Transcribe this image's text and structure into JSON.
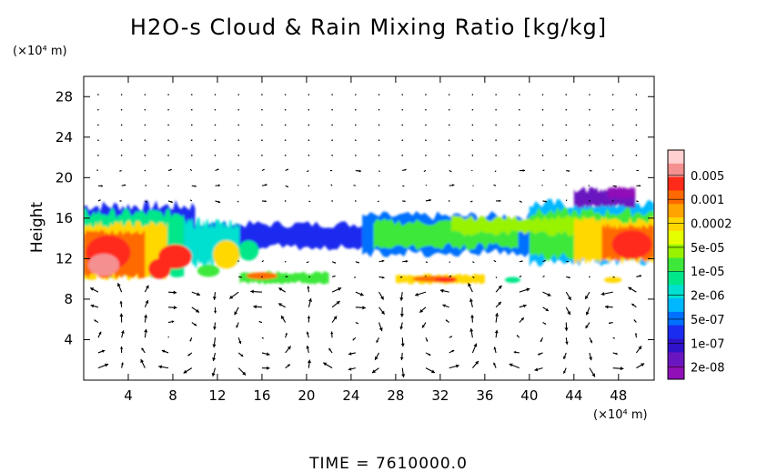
{
  "chart_data": {
    "type": "heatmap",
    "title": "H2O-s Cloud & Rain Mixing Ratio [kg/kg]",
    "ylabel": "Height",
    "y_unit": "(×10⁴ m)",
    "x_unit": "(×10⁴ m)",
    "footer": "TIME  =  7610000.0",
    "x_ticks": [
      4,
      8,
      12,
      16,
      20,
      24,
      28,
      32,
      36,
      40,
      44,
      48
    ],
    "y_ticks": [
      4,
      8,
      12,
      16,
      20,
      24,
      28
    ],
    "xlim": [
      0,
      51.2
    ],
    "ylim": [
      0,
      30
    ],
    "grid": false,
    "overlay": "wind vector arrows",
    "colorbar": {
      "labels": [
        "0.005",
        "0.001",
        "0.0002",
        "5e-05",
        "1e-05",
        "2e-06",
        "5e-07",
        "1e-07",
        "2e-08"
      ],
      "colors": [
        "#ffd0d0",
        "#f59090",
        "#ff2a1a",
        "#ff6a00",
        "#ffa400",
        "#ffd800",
        "#e6ff00",
        "#98f200",
        "#3ee83a",
        "#00e78a",
        "#00e0d0",
        "#00b8ff",
        "#0070ff",
        "#1a2cf0",
        "#3012c8",
        "#6a16c0",
        "#9010b8"
      ]
    },
    "regions": [
      {
        "name": "upper cloud deck",
        "x": [
          0,
          51.2
        ],
        "height": [
          13,
          17.5
        ],
        "level": "2e-08 to 1e-05"
      },
      {
        "name": "dense core west",
        "x": [
          0,
          7
        ],
        "height": [
          10,
          15
        ],
        "level": "0.001 to 0.005"
      },
      {
        "name": "convective core east",
        "x": [
          46,
          51.2
        ],
        "height": [
          11,
          16
        ],
        "level": "0.0002 to 0.001"
      },
      {
        "name": "thin cloud layer",
        "x": [
          14,
          36
        ],
        "height": [
          9.5,
          11
        ],
        "level": "5e-05 to 0.001"
      },
      {
        "name": "high cirrus east",
        "x": [
          44,
          50
        ],
        "height": [
          17,
          18.8
        ],
        "level": "2e-08"
      }
    ]
  }
}
